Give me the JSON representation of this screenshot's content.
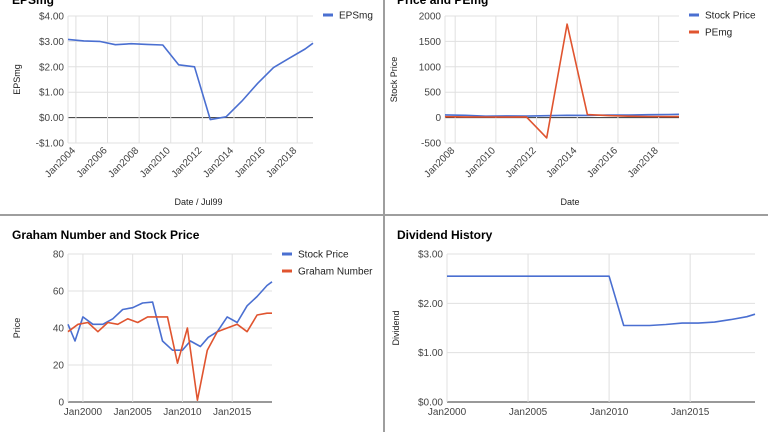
{
  "chart_data": [
    {
      "type": "line",
      "title": "EPSmg",
      "xlabel": "Date / Jul99",
      "ylabel": "EPSmg",
      "xlim": [
        2003.5,
        2019.0
      ],
      "ylim": [
        -1,
        4
      ],
      "x_ticks": [
        2004,
        2006,
        2008,
        2010,
        2012,
        2014,
        2016,
        2018
      ],
      "x_tick_labels": [
        "Jan2004",
        "Jan2006",
        "Jan2008",
        "Jan2010",
        "Jan2012",
        "Jan2014",
        "Jan2016",
        "Jan2018"
      ],
      "y_ticks": [
        -1,
        0,
        1,
        2,
        3,
        4
      ],
      "y_tick_labels": [
        "-$1.00",
        "$0.00",
        "$1.00",
        "$2.00",
        "$3.00",
        "$4.00"
      ],
      "zero_line": true,
      "grid": true,
      "legend": "top-right",
      "series": [
        {
          "name": "EPSmg",
          "color": "#4a6fd1",
          "x": [
            2003.5,
            2004.5,
            2005.5,
            2006.5,
            2007.5,
            2008.5,
            2009.5,
            2010.5,
            2011.5,
            2012.5,
            2013.5,
            2014.5,
            2015.5,
            2016.5,
            2017.5,
            2018.5,
            2019.0
          ],
          "y": [
            3.08,
            3.02,
            3.0,
            2.87,
            2.91,
            2.88,
            2.86,
            2.08,
            2.0,
            -0.08,
            0.03,
            0.65,
            1.35,
            1.97,
            2.34,
            2.7,
            2.93
          ]
        }
      ]
    },
    {
      "type": "line",
      "title": "Price and PEmg",
      "xlabel": "Date",
      "ylabel": "Stock Price",
      "xlim": [
        2007.5,
        2019.0
      ],
      "ylim": [
        -500,
        2000
      ],
      "x_ticks": [
        2008,
        2010,
        2012,
        2014,
        2016,
        2018
      ],
      "x_tick_labels": [
        "Jan2008",
        "Jan2010",
        "Jan2012",
        "Jan2014",
        "Jan2016",
        "Jan2018"
      ],
      "y_ticks": [
        -500,
        0,
        500,
        1000,
        1500,
        2000
      ],
      "y_tick_labels": [
        "-500",
        "0",
        "500",
        "1000",
        "1500",
        "2000"
      ],
      "zero_line": true,
      "grid": true,
      "legend": "top-right",
      "series": [
        {
          "name": "Stock Price",
          "color": "#4a6fd1",
          "x": [
            2007.5,
            2008.5,
            2009.5,
            2010.5,
            2011.5,
            2012.5,
            2013.5,
            2014.5,
            2015.5,
            2016.5,
            2017.5,
            2018.5,
            2019.0
          ],
          "y": [
            54,
            45,
            28,
            33,
            30,
            38,
            46,
            44,
            52,
            52,
            58,
            62,
            65
          ]
        },
        {
          "name": "PEmg",
          "color": "#e0542f",
          "x": [
            2007.5,
            2008.5,
            2009.5,
            2010.5,
            2011.5,
            2012.5,
            2013.5,
            2014.5,
            2015.5,
            2016.5,
            2017.5,
            2018.5,
            2019.0
          ],
          "y": [
            18,
            14,
            12,
            10,
            14,
            -400,
            1840,
            60,
            40,
            28,
            22,
            20,
            20
          ]
        }
      ]
    },
    {
      "type": "line",
      "title": "Graham Number and Stock Price",
      "xlabel": "",
      "ylabel": "Price",
      "xlim": [
        1998.5,
        2019.0
      ],
      "ylim": [
        0,
        80
      ],
      "x_ticks": [
        2000,
        2005,
        2010,
        2015
      ],
      "x_tick_labels": [
        "Jan2000",
        "Jan2005",
        "Jan2010",
        "Jan2015"
      ],
      "y_ticks": [
        0,
        20,
        40,
        60,
        80
      ],
      "y_tick_labels": [
        "0",
        "20",
        "40",
        "60",
        "80"
      ],
      "zero_line": true,
      "grid": true,
      "legend": "top-right",
      "series": [
        {
          "name": "Stock Price",
          "color": "#4a6fd1",
          "x": [
            1998.5,
            1999.2,
            2000.0,
            2001.0,
            2002.0,
            2003.0,
            2004.0,
            2005.0,
            2006.0,
            2007.0,
            2008.0,
            2009.0,
            2010.0,
            2010.8,
            2011.8,
            2012.6,
            2013.5,
            2014.5,
            2015.5,
            2016.5,
            2017.5,
            2018.5,
            2019.0
          ],
          "y": [
            42,
            33,
            46,
            42,
            42,
            45,
            50,
            51,
            53.5,
            54,
            33,
            28,
            28,
            33,
            30,
            35,
            38,
            46,
            43,
            52,
            57,
            63,
            65
          ]
        },
        {
          "name": "Graham Number",
          "color": "#e0542f",
          "x": [
            1998.5,
            1999.5,
            2000.5,
            2001.5,
            2002.5,
            2003.5,
            2004.5,
            2005.5,
            2006.5,
            2007.5,
            2008.5,
            2009.5,
            2010.5,
            2011.5,
            2012.5,
            2013.5,
            2014.5,
            2015.5,
            2016.5,
            2017.5,
            2018.5,
            2019.0
          ],
          "y": [
            38,
            42,
            43,
            38,
            43,
            42,
            45,
            43,
            46,
            46,
            46,
            21,
            40,
            1,
            28,
            38,
            40,
            42,
            38,
            47,
            48,
            48
          ]
        }
      ]
    },
    {
      "type": "line",
      "title": "Dividend History",
      "xlabel": "",
      "ylabel": "Dividend",
      "xlim": [
        2000.0,
        2019.0
      ],
      "ylim": [
        0,
        3
      ],
      "x_ticks": [
        2000,
        2005,
        2010,
        2015
      ],
      "x_tick_labels": [
        "Jan2000",
        "Jan2005",
        "Jan2010",
        "Jan2015"
      ],
      "y_ticks": [
        0,
        1,
        2,
        3
      ],
      "y_tick_labels": [
        "$0.00",
        "$1.00",
        "$2.00",
        "$3.00"
      ],
      "zero_line": true,
      "grid": true,
      "legend": "none",
      "series": [
        {
          "name": "Dividend",
          "color": "#4a6fd1",
          "x": [
            2000.0,
            2001.0,
            2002.0,
            2003.0,
            2004.0,
            2005.0,
            2006.0,
            2007.0,
            2008.0,
            2009.0,
            2010.0,
            2010.9,
            2011.5,
            2012.5,
            2013.5,
            2014.5,
            2015.5,
            2016.5,
            2017.5,
            2018.5,
            2019.0
          ],
          "y": [
            2.55,
            2.55,
            2.55,
            2.55,
            2.55,
            2.55,
            2.55,
            2.55,
            2.55,
            2.55,
            2.55,
            1.55,
            1.55,
            1.55,
            1.57,
            1.6,
            1.6,
            1.62,
            1.67,
            1.73,
            1.78
          ]
        }
      ]
    }
  ]
}
